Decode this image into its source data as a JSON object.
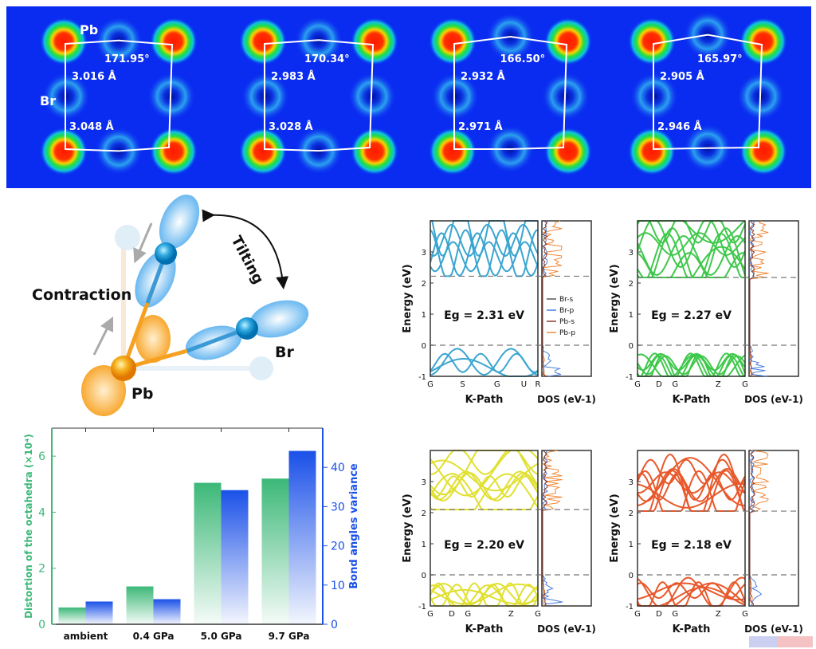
{
  "maps": [
    {
      "angle": "171.95°",
      "bond_top": "3.016 Å",
      "bond_bottom": "3.048 Å"
    },
    {
      "angle": "170.34°",
      "bond_top": "2.983 Å",
      "bond_bottom": "3.028 Å"
    },
    {
      "angle": "166.50°",
      "bond_top": "2.932 Å",
      "bond_bottom": "2.971 Å"
    },
    {
      "angle": "165.97°",
      "bond_top": "2.905 Å",
      "bond_bottom": "2.946 Å"
    }
  ],
  "map_labels": {
    "pb": "Pb",
    "br": "Br"
  },
  "diagram": {
    "contraction": "Contraction",
    "tilting": "Tilting",
    "br": "Br",
    "pb": "Pb"
  },
  "colors": {
    "map_bg": "#0a2cf0",
    "pb_orange": "#f5a030",
    "br_blue": "#3a9ad8",
    "green_axis": "#3cb878",
    "blue_axis": "#1a50e8"
  },
  "chart_data": [
    {
      "type": "bar",
      "categories": [
        "ambient",
        "0.4 GPa",
        "5.0 GPa",
        "9.7 GPa"
      ],
      "series": [
        {
          "values": [
            0.6,
            1.35,
            5.05,
            5.2
          ],
          "axis": "left",
          "color": "#3cb878"
        },
        {
          "values": [
            5.8,
            6.4,
            34.2,
            44.2
          ],
          "axis": "right",
          "color": "#1a50e8"
        }
      ],
      "ylabel": "Distortion of the octahedra  (×10⁴)",
      "y2label": "Bond angles variance",
      "ylim": [
        0,
        7
      ],
      "y2lim": [
        0,
        50
      ],
      "yticks": [
        "0",
        "2",
        "4",
        "6"
      ],
      "y2ticks": [
        "0",
        "10",
        "20",
        "30",
        "40"
      ]
    },
    {
      "type": "line",
      "panels": [
        {
          "eg": "Eg = 2.31 eV",
          "kpoints": [
            "G",
            "S",
            "G",
            "U",
            "R"
          ],
          "color": "#3aa5d0",
          "cbm": 2.22,
          "legend": true
        },
        {
          "eg": "Eg = 2.27 eV",
          "kpoints": [
            "G",
            "D",
            "G",
            "Z",
            "G"
          ],
          "color": "#3ec84a",
          "cbm": 2.18
        },
        {
          "eg": "Eg = 2.20 eV",
          "kpoints": [
            "G",
            "D",
            "G",
            "Z",
            "G"
          ],
          "color": "#e0e030",
          "cbm": 2.1
        },
        {
          "eg": "Eg = 2.18 eV",
          "kpoints": [
            "G",
            "D",
            "G",
            "Z",
            "G"
          ],
          "color": "#e8582a",
          "cbm": 2.05
        }
      ],
      "ylabel": "Energy (eV)",
      "xlabel": "K-Path",
      "doslabel": "DOS (eV-1)",
      "yticks": [
        "-1",
        "0",
        "1",
        "2",
        "3"
      ],
      "ylim": [
        -1,
        4
      ],
      "dos_legend": [
        {
          "name": "Br-s",
          "color": "#555555"
        },
        {
          "name": "Br-p",
          "color": "#4a80e0"
        },
        {
          "name": "Pb-s",
          "color": "#8b3a2a"
        },
        {
          "name": "Pb-p",
          "color": "#f08a3a"
        }
      ]
    }
  ]
}
